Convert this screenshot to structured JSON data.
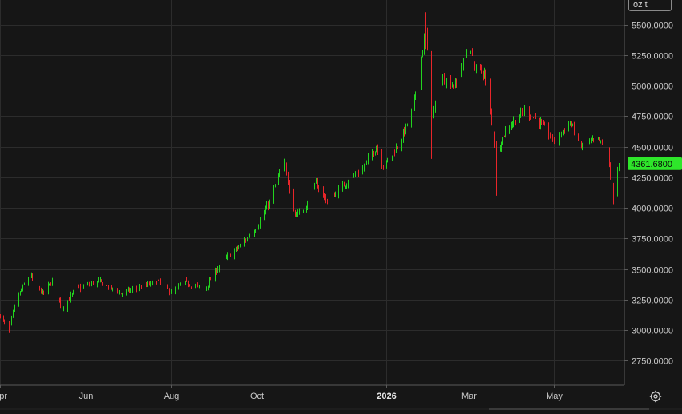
{
  "instrument": {
    "unit": "oz t"
  },
  "colors": {
    "up": "#22d31f",
    "down": "#e8252a",
    "grid": "#2c2c2c",
    "bg": "#161616",
    "price_badge": "#2ee62a"
  },
  "icons": {
    "settings": "gear-icon"
  },
  "chart_data": {
    "type": "candlestick",
    "title": "",
    "xlabel": "",
    "ylabel": "",
    "current_price": 4361.68,
    "current_price_label": "4361.6800",
    "ylim": [
      2550,
      5700
    ],
    "y_ticks": [
      2750,
      3000,
      3250,
      3500,
      3750,
      4000,
      4250,
      4500,
      4750,
      5000,
      5250,
      5500
    ],
    "y_tick_labels": [
      "2750.0000",
      "3000.0000",
      "3250.0000",
      "3500.0000",
      "3750.0000",
      "4000.0000",
      "4250.0000",
      "4500.0000",
      "4750.0000",
      "5000.0000",
      "5250.0000",
      "5500.0000"
    ],
    "x_range": [
      "2025-04-01",
      "2026-06-20"
    ],
    "x_ticks": [
      {
        "date": "2025-04-01",
        "label": "Apr",
        "bold": false
      },
      {
        "date": "2025-06-01",
        "label": "Jun",
        "bold": false
      },
      {
        "date": "2025-08-01",
        "label": "Aug",
        "bold": false
      },
      {
        "date": "2025-10-01",
        "label": "Oct",
        "bold": false
      },
      {
        "date": "2026-01-01",
        "label": "2026",
        "bold": true
      },
      {
        "date": "2026-03-01",
        "label": "Mar",
        "bold": false
      },
      {
        "date": "2026-05-01",
        "label": "May",
        "bold": false
      }
    ],
    "grid": true,
    "keypoints": [
      [
        "2025-04-01",
        3120
      ],
      [
        "2025-04-07",
        2980
      ],
      [
        "2025-04-12",
        3250
      ],
      [
        "2025-04-22",
        3450
      ],
      [
        "2025-05-01",
        3300
      ],
      [
        "2025-05-08",
        3400
      ],
      [
        "2025-05-15",
        3180
      ],
      [
        "2025-05-25",
        3340
      ],
      [
        "2025-06-10",
        3400
      ],
      [
        "2025-06-25",
        3300
      ],
      [
        "2025-07-10",
        3350
      ],
      [
        "2025-07-22",
        3400
      ],
      [
        "2025-08-01",
        3300
      ],
      [
        "2025-08-10",
        3390
      ],
      [
        "2025-08-25",
        3340
      ],
      [
        "2025-09-05",
        3550
      ],
      [
        "2025-09-20",
        3700
      ],
      [
        "2025-10-01",
        3850
      ],
      [
        "2025-10-10",
        4050
      ],
      [
        "2025-10-20",
        4380
      ],
      [
        "2025-10-28",
        3950
      ],
      [
        "2025-11-05",
        4000
      ],
      [
        "2025-11-12",
        4200
      ],
      [
        "2025-11-20",
        4050
      ],
      [
        "2025-12-05",
        4220
      ],
      [
        "2025-12-15",
        4320
      ],
      [
        "2025-12-25",
        4500
      ],
      [
        "2025-12-30",
        4330
      ],
      [
        "2026-01-10",
        4520
      ],
      [
        "2026-01-20",
        4800
      ],
      [
        "2026-01-29",
        5450
      ],
      [
        "2026-02-02",
        4700
      ],
      [
        "2026-02-10",
        5050
      ],
      [
        "2026-02-20",
        5000
      ],
      [
        "2026-03-01",
        5350
      ],
      [
        "2026-03-05",
        5150
      ],
      [
        "2026-03-12",
        5100
      ],
      [
        "2026-03-20",
        4450
      ],
      [
        "2026-03-28",
        4650
      ],
      [
        "2026-04-10",
        4800
      ],
      [
        "2026-04-20",
        4700
      ],
      [
        "2026-05-01",
        4550
      ],
      [
        "2026-05-12",
        4700
      ],
      [
        "2026-05-20",
        4500
      ],
      [
        "2026-06-01",
        4560
      ],
      [
        "2026-06-08",
        4450
      ],
      [
        "2026-06-12",
        4100
      ],
      [
        "2026-06-16",
        4361.68
      ]
    ]
  }
}
